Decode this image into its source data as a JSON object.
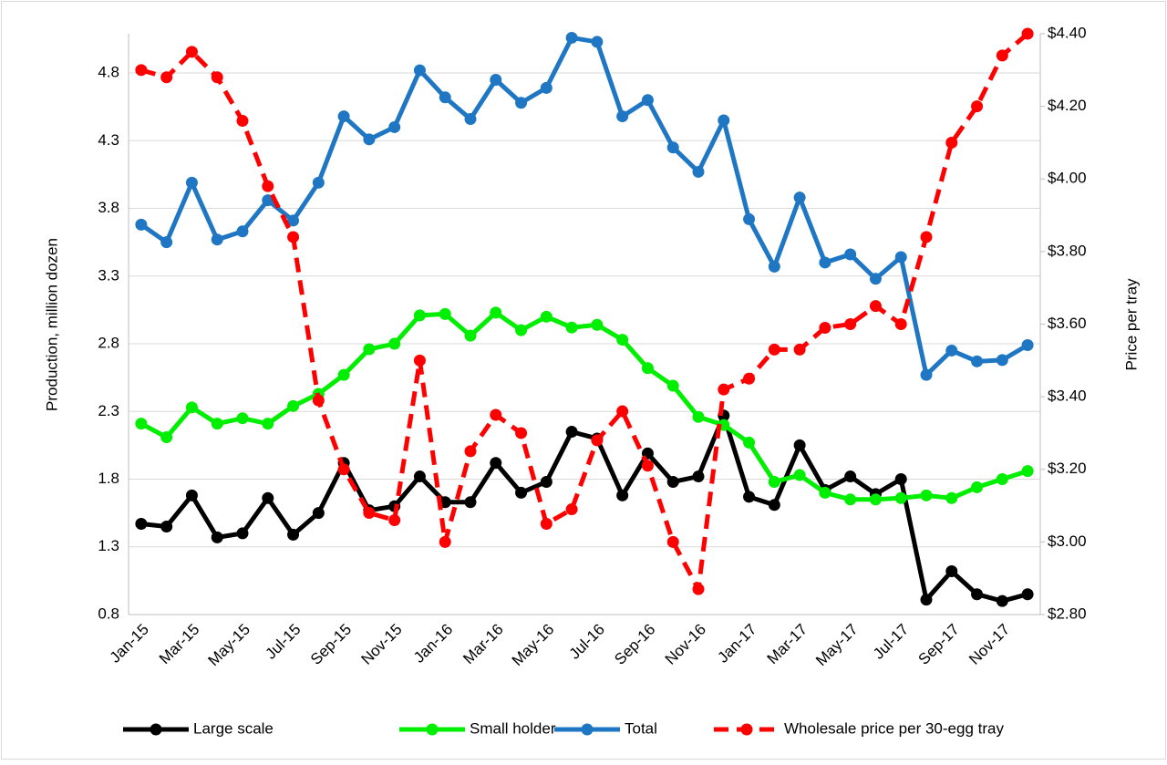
{
  "chart_data": {
    "type": "line",
    "y_label": "Production, million dozen",
    "y2_label": "Price per tray",
    "categories": [
      "Jan-15",
      null,
      "Mar-15",
      null,
      "May-15",
      null,
      "Jul-15",
      null,
      "Sep-15",
      null,
      "Nov-15",
      null,
      "Jan-16",
      null,
      "Mar-16",
      null,
      "May-16",
      null,
      "Jul-16",
      null,
      "Sep-16",
      null,
      "Nov-16",
      null,
      "Jan-17",
      null,
      "Mar-17",
      null,
      "May-17",
      null,
      "Jul-17",
      null,
      "Sep-17",
      null,
      "Nov-17",
      null
    ],
    "ylim": [
      0.8,
      5.09
    ],
    "yticks": [
      0.8,
      1.3,
      1.8,
      2.3,
      2.8,
      3.3,
      3.8,
      4.3,
      4.8
    ],
    "y2lim": [
      2.8,
      4.4
    ],
    "y2ticks": [
      {
        "value": 2.8,
        "label": "$2.80"
      },
      {
        "value": 3.0,
        "label": "$3.00"
      },
      {
        "value": 3.2,
        "label": "$3.20"
      },
      {
        "value": 3.4,
        "label": "$3.40"
      },
      {
        "value": 3.6,
        "label": "$3.60"
      },
      {
        "value": 3.8,
        "label": "$3.80"
      },
      {
        "value": 4.0,
        "label": "$4.00"
      },
      {
        "value": 4.2,
        "label": "$4.20"
      },
      {
        "value": 4.4,
        "label": "$4.40"
      }
    ],
    "grid": true,
    "legend": "bottom",
    "series": [
      {
        "name": "Large scale",
        "color": "#000000",
        "dashed": false,
        "values": [
          1.47,
          1.45,
          1.68,
          1.37,
          1.4,
          1.66,
          1.39,
          1.55,
          1.92,
          1.57,
          1.6,
          1.82,
          1.63,
          1.63,
          1.92,
          1.7,
          1.78,
          2.15,
          2.1,
          1.68,
          1.99,
          1.78,
          1.82,
          2.27,
          1.67,
          1.61,
          2.05,
          1.72,
          1.82,
          1.69,
          1.8,
          0.91,
          1.12,
          0.95,
          0.9,
          0.95
        ]
      },
      {
        "name": "Small holder",
        "color": "#00ee00",
        "dashed": false,
        "values": [
          2.21,
          2.11,
          2.33,
          2.21,
          2.25,
          2.21,
          2.34,
          2.43,
          2.57,
          2.76,
          2.8,
          3.01,
          3.02,
          2.86,
          3.03,
          2.9,
          3.0,
          2.92,
          2.94,
          2.83,
          2.62,
          2.49,
          2.26,
          2.2,
          2.07,
          1.78,
          1.83,
          1.7,
          1.65,
          1.65,
          1.66,
          1.68,
          1.66,
          1.74,
          1.8,
          1.86
        ]
      },
      {
        "name": "Total",
        "color": "#1f77c4",
        "dashed": false,
        "values": [
          3.68,
          3.55,
          3.99,
          3.57,
          3.63,
          3.86,
          3.71,
          3.99,
          4.48,
          4.31,
          4.4,
          4.82,
          4.62,
          4.46,
          4.75,
          4.58,
          4.69,
          5.06,
          5.03,
          4.48,
          4.6,
          4.25,
          4.07,
          4.45,
          3.72,
          3.37,
          3.88,
          3.4,
          3.46,
          3.28,
          3.44,
          2.57,
          2.75,
          2.67,
          2.68,
          2.79
        ]
      },
      {
        "name": "Wholesale price per 30-egg tray",
        "color": "#ff0000",
        "dashed": true,
        "axis": "y2",
        "values": [
          4.3,
          4.28,
          4.35,
          4.28,
          4.16,
          3.98,
          3.84,
          3.39,
          3.2,
          3.08,
          3.06,
          3.5,
          3.0,
          3.25,
          3.35,
          3.3,
          3.05,
          3.09,
          3.28,
          3.36,
          3.21,
          3.0,
          2.87,
          3.42,
          3.45,
          3.53,
          3.53,
          3.59,
          3.6,
          3.65,
          3.6,
          3.84,
          4.1,
          4.2,
          4.34,
          4.4
        ]
      }
    ]
  }
}
